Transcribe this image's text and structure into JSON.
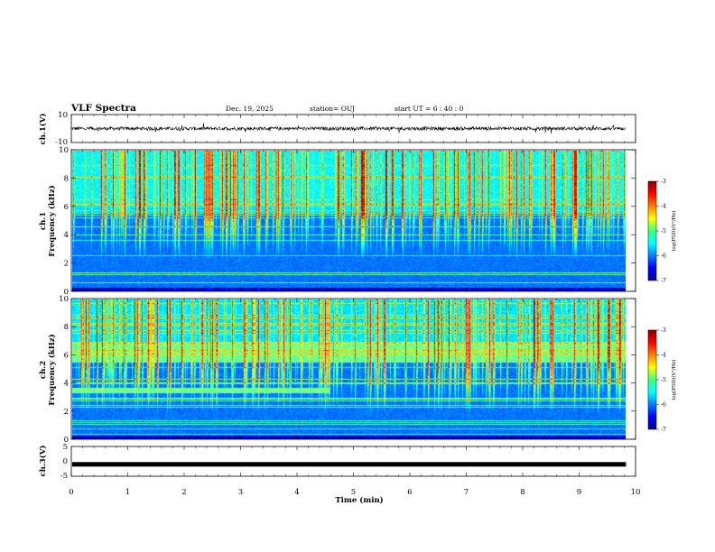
{
  "header": {
    "title": "VLF Spectra",
    "date": "Dec. 19, 2025",
    "station": "station= OUJ",
    "start": "start  UT  =   6 : 40 : 0"
  },
  "chart_data": [
    {
      "type": "line",
      "panel": "ch1-waveform",
      "ylabel": "ch.1(V)",
      "ylim": [
        -10,
        10
      ],
      "yticks": [
        "10",
        "-10"
      ],
      "x_range_min": [
        0,
        9.83
      ],
      "mean": 0,
      "amplitude": 2.5
    },
    {
      "type": "heatmap",
      "panel": "ch1-spectrogram",
      "ylabel_top": "ch.1",
      "ylabel": "Frequency (kHz)",
      "ylim": [
        0,
        10
      ],
      "yticks": [
        "0",
        "2",
        "4",
        "6",
        "8",
        "10"
      ],
      "x_range_min": [
        0,
        9.83
      ],
      "colorbar": {
        "label": "log(PSD)(V²/Hz)",
        "range": [
          -7,
          -3
        ],
        "ticks": [
          "-3",
          "-4",
          "-5",
          "-6",
          "-7"
        ]
      },
      "noise_band_top_kHz": 6.0,
      "sferic_band_kHz": [
        6.0,
        10.0
      ]
    },
    {
      "type": "heatmap",
      "panel": "ch2-spectrogram",
      "ylabel_top": "ch.2",
      "ylabel": "Frequency (kHz)",
      "ylim": [
        0,
        10
      ],
      "yticks": [
        "0",
        "2",
        "4",
        "6",
        "8",
        "10"
      ],
      "x_range_min": [
        0,
        9.83
      ],
      "colorbar": {
        "label": "log(PSD)(V²/Hz)",
        "range": [
          -7,
          -3
        ],
        "ticks": [
          "-3",
          "-4",
          "-5",
          "-6",
          "-7"
        ]
      },
      "noise_band_kHz": [
        5.5,
        7.0
      ],
      "tone_band_kHz": [
        3.3,
        3.7
      ],
      "tone_end_min": 4.65
    },
    {
      "type": "line",
      "panel": "ch3-waveform",
      "ylabel": "ch.3(V)",
      "ylim": [
        -5,
        5
      ],
      "yticks": [
        "5",
        "0",
        "-5"
      ],
      "x_range_min": [
        0,
        9.83
      ],
      "value": -1
    }
  ],
  "xaxis": {
    "label": "Time  (min)",
    "range": [
      0,
      10
    ],
    "ticks": [
      "0",
      "1",
      "2",
      "3",
      "4",
      "5",
      "6",
      "7",
      "8",
      "9",
      "10"
    ]
  }
}
